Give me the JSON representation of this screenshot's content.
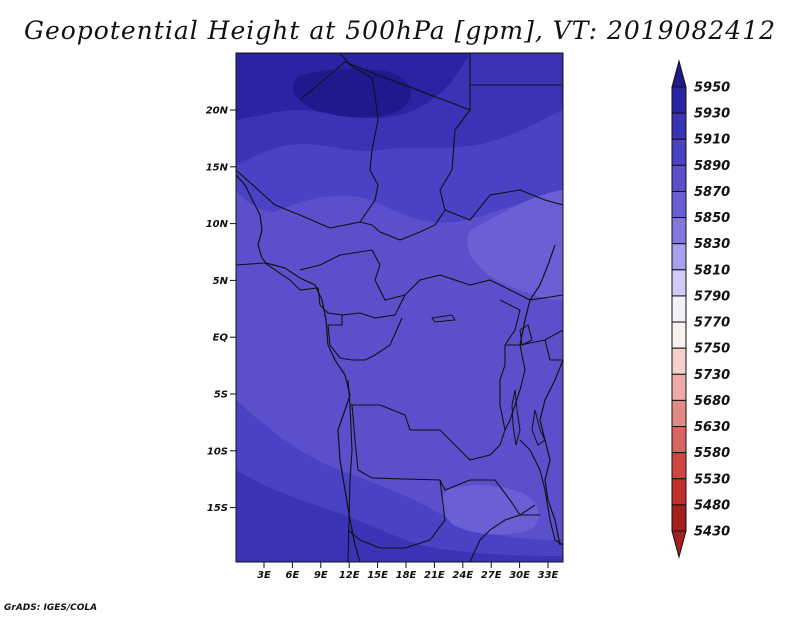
{
  "title": "Geopotential Height at 500hPa [gpm], VT: 2019082412",
  "credit": "GrADS: IGES/COLA",
  "map": {
    "lat_ticks": [
      "20N",
      "15N",
      "10N",
      "5N",
      "EQ",
      "5S",
      "10S",
      "15S"
    ],
    "lon_ticks": [
      "3E",
      "6E",
      "9E",
      "12E",
      "15E",
      "18E",
      "21E",
      "24E",
      "27E",
      "30E",
      "33E"
    ]
  },
  "colorbar": {
    "levels": [
      "5950",
      "5930",
      "5910",
      "5890",
      "5870",
      "5850",
      "5830",
      "5810",
      "5790",
      "5770",
      "5750",
      "5730",
      "5680",
      "5630",
      "5580",
      "5530",
      "5480",
      "5430"
    ],
    "colors": [
      "#1e1a8e",
      "#2a23a4",
      "#3a33b6",
      "#4a42c4",
      "#5a50cc",
      "#6a60d6",
      "#8577e2",
      "#a8a0ee",
      "#cfcaf6",
      "#f2f0fc",
      "#fcf0ef",
      "#f7cfcd",
      "#efaaa5",
      "#e48a85",
      "#d86662",
      "#ce4742",
      "#c1302c",
      "#a3201c"
    ]
  }
}
